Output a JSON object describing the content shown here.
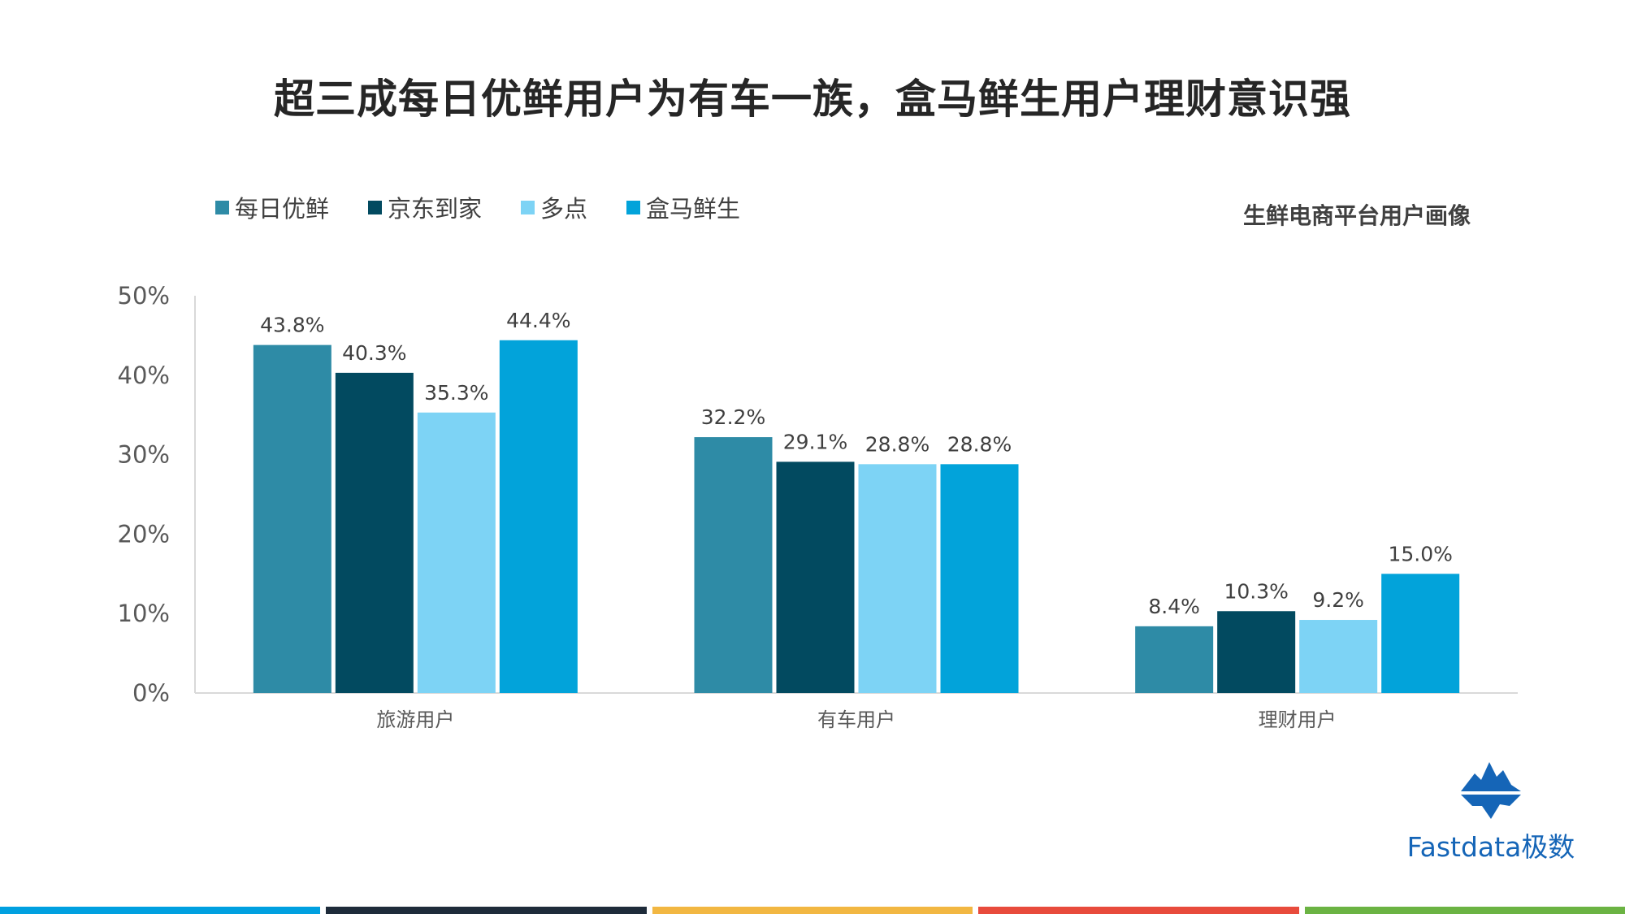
{
  "title": "超三成每日优鲜用户为有车一族，盒马鲜生用户理财意识强",
  "subtitle": "生鲜电商平台用户画像",
  "brand": {
    "name": "Fastdata极数",
    "logo_icon": "iceberg-logo-icon",
    "color": "#1565b7"
  },
  "footer_colors": [
    "#00a0e0",
    "#1e2b3a",
    "#f2b742",
    "#e84b3c",
    "#6bb343"
  ],
  "chart_data": {
    "type": "bar",
    "categories": [
      "旅游用户",
      "有车用户",
      "理财用户"
    ],
    "series": [
      {
        "name": "每日优鲜",
        "color": "#2e8ba6",
        "values": [
          43.8,
          32.2,
          8.4
        ],
        "labels": [
          "43.8%",
          "32.2%",
          "8.4%"
        ]
      },
      {
        "name": "京东到家",
        "color": "#024a60",
        "values": [
          40.3,
          29.1,
          10.3
        ],
        "labels": [
          "40.3%",
          "29.1%",
          "10.3%"
        ]
      },
      {
        "name": "多点",
        "color": "#7dd3f5",
        "values": [
          35.3,
          28.8,
          9.2
        ],
        "labels": [
          "35.3%",
          "28.8%",
          "9.2%"
        ]
      },
      {
        "name": "盒马鲜生",
        "color": "#02a3da",
        "values": [
          44.4,
          28.8,
          15.0
        ],
        "labels": [
          "44.4%",
          "28.8%",
          "15.0%"
        ]
      }
    ],
    "ylim": [
      0,
      50
    ],
    "yticks": [
      "0%",
      "10%",
      "20%",
      "30%",
      "40%",
      "50%"
    ],
    "legend": "top-left",
    "grid": false
  }
}
